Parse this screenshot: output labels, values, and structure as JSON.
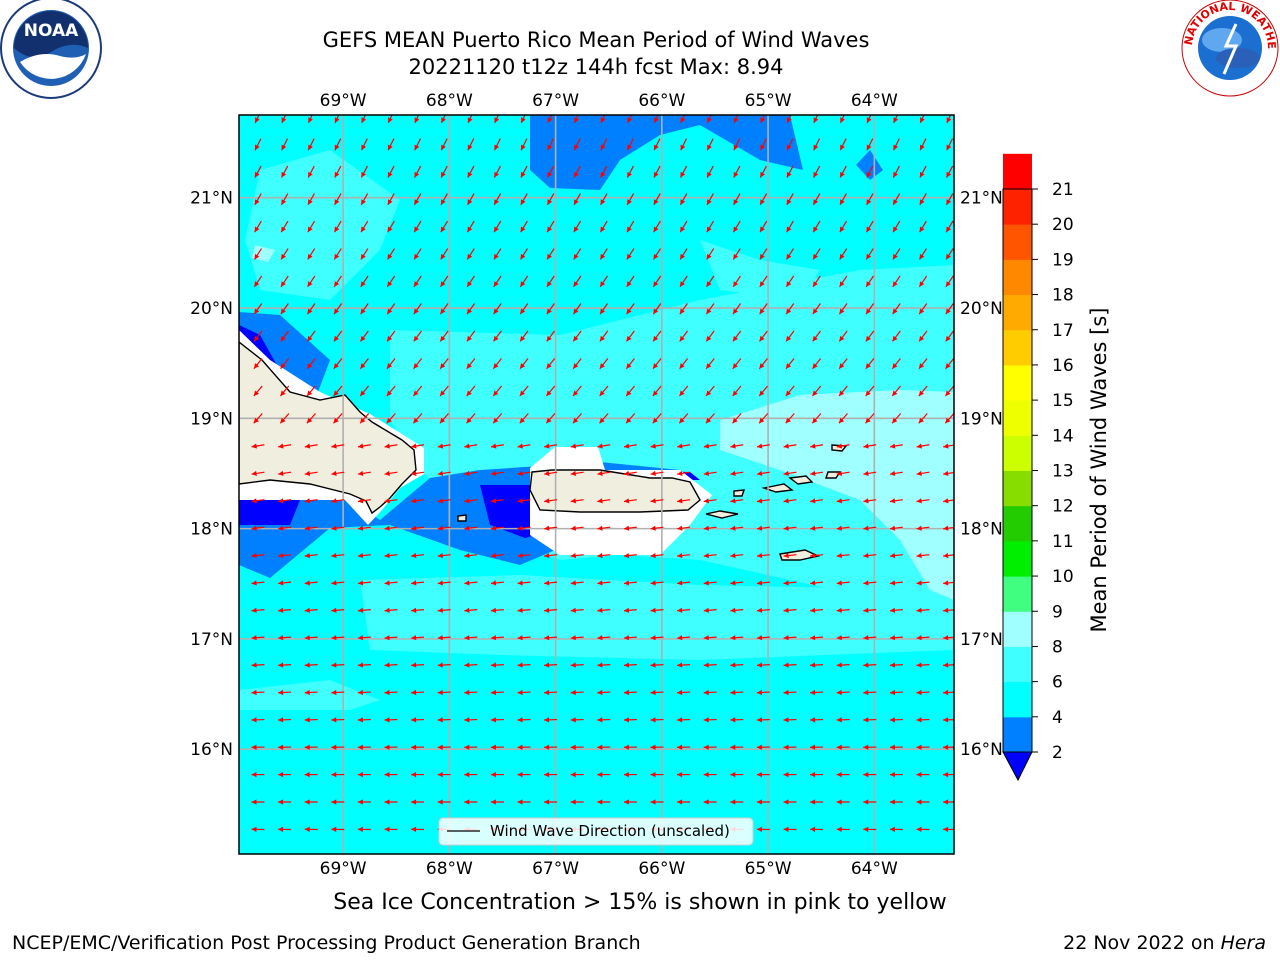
{
  "title_line1": "GEFS MEAN Puerto Rico Mean Period of Wind Waves",
  "title_line2": "20221120 t12z 144h fcst   Max: 8.94",
  "note": "Sea Ice Concentration > 15% is shown in pink to yellow",
  "credit": "NCEP/EMC/Verification Post Processing Product Generation Branch",
  "stamp_date": "22 Nov 2022 on ",
  "stamp_machine": "Hera",
  "logos": {
    "left": "NOAA",
    "left_ring": "NATIONAL OCEANIC AND ATMOSPHERIC ADMINISTRATION · U.S. DEPARTMENT OF COMMERCE",
    "right_ring": "NATIONAL WEATHER SERVICE"
  },
  "map": {
    "extent": {
      "lon": [
        -69.98,
        -63.25
      ],
      "lat": [
        15.05,
        21.75
      ]
    },
    "lon_ticks": [
      -69,
      -68,
      -67,
      -66,
      -65,
      -64
    ],
    "lon_labels": [
      "69°W",
      "68°W",
      "67°W",
      "66°W",
      "65°W",
      "64°W"
    ],
    "lat_ticks": [
      16,
      17,
      18,
      19,
      20,
      21
    ],
    "lat_labels": [
      "16°N",
      "17°N",
      "18°N",
      "19°N",
      "20°N",
      "21°N"
    ],
    "legend_label": "Wind Wave Direction (unscaled)",
    "colors": {
      "ocean_base": "#00ffff",
      "land": "#efeedf",
      "arrow": "#ff0000"
    }
  },
  "colorbar": {
    "label": "Mean Period of Wind Waves [s]",
    "levels": [
      2,
      4,
      6,
      8,
      9,
      10,
      11,
      12,
      13,
      14,
      15,
      16,
      17,
      18,
      19,
      20,
      21
    ],
    "colors": [
      "#0080ff",
      "#00ffff",
      "#40ffff",
      "#a0ffff",
      "#40ff80",
      "#00ee00",
      "#22cc00",
      "#88dd00",
      "#ccff00",
      "#eeff00",
      "#ffff00",
      "#ffcc00",
      "#ffaa00",
      "#ff8800",
      "#ff5500",
      "#ff2200",
      "#ff0000"
    ],
    "under_color": "#0000ff"
  }
}
